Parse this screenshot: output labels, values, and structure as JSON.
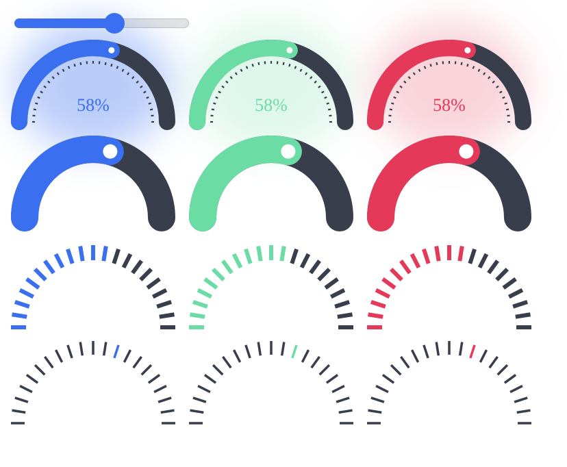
{
  "slider": {
    "value": 0.58
  },
  "gauge_value": 0.58,
  "gauges": {
    "labels": [
      "58%",
      "58%",
      "58%"
    ]
  },
  "colors": {
    "blue": "#3a6ff0",
    "green": "#6cdca5",
    "red": "#e5395a",
    "track": "#393e4c"
  }
}
